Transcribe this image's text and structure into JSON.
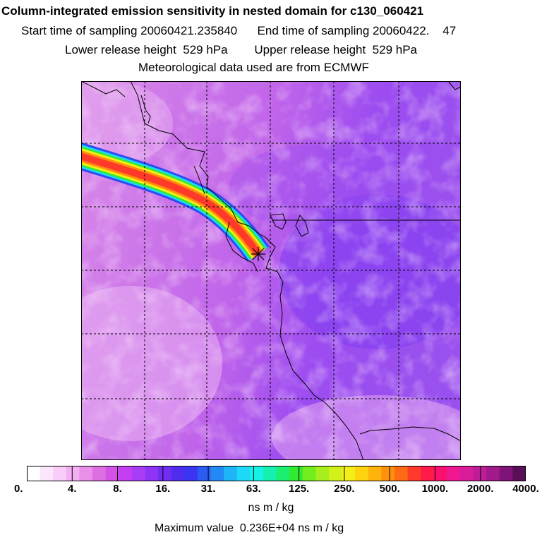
{
  "header": {
    "title": "Column-integrated emission sensitivity in nested domain for c130_060421",
    "line1": "Start time of sampling 20060421.235840      End time of sampling 20060422.    47",
    "line2": "Lower release height  529 hPa        Upper release height  529 hPa",
    "line3": "Meteorological data used are from ECMWF"
  },
  "colorbar": {
    "tick_labels": [
      "0.",
      "4.",
      "8.",
      "16.",
      "31.",
      "63.",
      "125.",
      "250.",
      "500.",
      "1000.",
      "2000.",
      "4000."
    ],
    "units": "ns m / kg",
    "colors": [
      "#ffffff",
      "#fce6fc",
      "#f8cdf8",
      "#f2b0f2",
      "#e98fe8",
      "#de6fe0",
      "#d452e8",
      "#c43ef2",
      "#a93cf5",
      "#8f34f5",
      "#6f2ef2",
      "#4f2cee",
      "#3a35f0",
      "#2b5cf2",
      "#2389f5",
      "#1fb4f8",
      "#1cd9f8",
      "#17f2e6",
      "#15f0b0",
      "#1cee70",
      "#33ea33",
      "#70ee1f",
      "#a6ef1c",
      "#d2f01a",
      "#f2ee16",
      "#ffd30f",
      "#ffb40c",
      "#ff900c",
      "#ff6a16",
      "#ff3a2a",
      "#ff1a4a",
      "#fb1270",
      "#ef1890",
      "#d81c9a",
      "#bf1c98",
      "#a01a8c",
      "#7e1478",
      "#5a0e58"
    ]
  },
  "max_value_text": "Maximum value  0.236E+04 ns m / kg",
  "map": {
    "background_color": "#b85ce8",
    "plume_colors": [
      "#2b4cf2",
      "#1cd9f8",
      "#33ea33",
      "#f2ee16",
      "#ff900c",
      "#ff3a2a"
    ],
    "receptor_marker": "cross"
  }
}
